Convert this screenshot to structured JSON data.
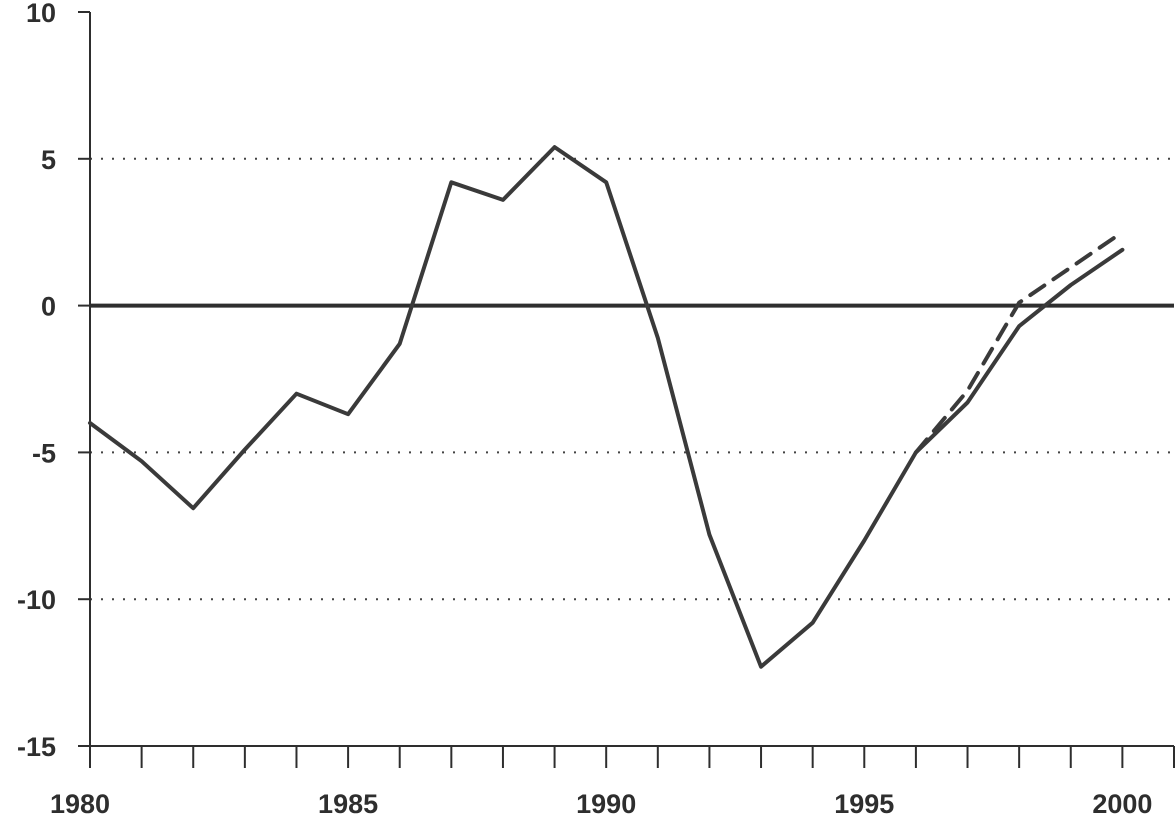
{
  "chart_data": {
    "type": "line",
    "title": "",
    "xlabel": "",
    "ylabel": "",
    "xlim": [
      1980,
      2001
    ],
    "ylim": [
      -15,
      10
    ],
    "x_ticks": [
      1980,
      1981,
      1982,
      1983,
      1984,
      1985,
      1986,
      1987,
      1988,
      1989,
      1990,
      1991,
      1992,
      1993,
      1994,
      1995,
      1996,
      1997,
      1998,
      1999,
      2000,
      2001
    ],
    "x_tick_labels": [
      {
        "value": 1980,
        "label": "1980"
      },
      {
        "value": 1985,
        "label": "1985"
      },
      {
        "value": 1990,
        "label": "1990"
      },
      {
        "value": 1995,
        "label": "1995"
      },
      {
        "value": 2000,
        "label": "2000"
      }
    ],
    "y_tick_labels": [
      {
        "value": 10,
        "label": "10"
      },
      {
        "value": 5,
        "label": "5"
      },
      {
        "value": 0,
        "label": "0"
      },
      {
        "value": -5,
        "label": "-5"
      },
      {
        "value": -10,
        "label": "-10"
      },
      {
        "value": -15,
        "label": "-15"
      }
    ],
    "grid": {
      "y_dotted": [
        5,
        -5,
        -10
      ],
      "zero_line": true
    },
    "series": [
      {
        "style": "solid",
        "x": [
          1980,
          1981,
          1982,
          1983,
          1984,
          1985,
          1986,
          1987,
          1988,
          1989,
          1990,
          1991,
          1992,
          1993,
          1994,
          1995,
          1996,
          1997,
          1998,
          1999,
          2000
        ],
        "values": [
          -4.0,
          -5.3,
          -6.9,
          -4.9,
          -3.0,
          -3.7,
          -1.3,
          4.2,
          3.6,
          5.4,
          4.2,
          -1.1,
          -7.8,
          -12.3,
          -10.8,
          -8.0,
          -5.0,
          -3.3,
          -0.7,
          0.7,
          1.9
        ]
      },
      {
        "style": "dashed",
        "x": [
          1996,
          1997,
          1998,
          1999,
          2000
        ],
        "values": [
          -5.0,
          -2.9,
          0.1,
          1.3,
          2.5
        ]
      }
    ],
    "colors": {
      "line": "#3a3a3a",
      "axis": "#2e2e2e",
      "grid": "#444444"
    }
  }
}
